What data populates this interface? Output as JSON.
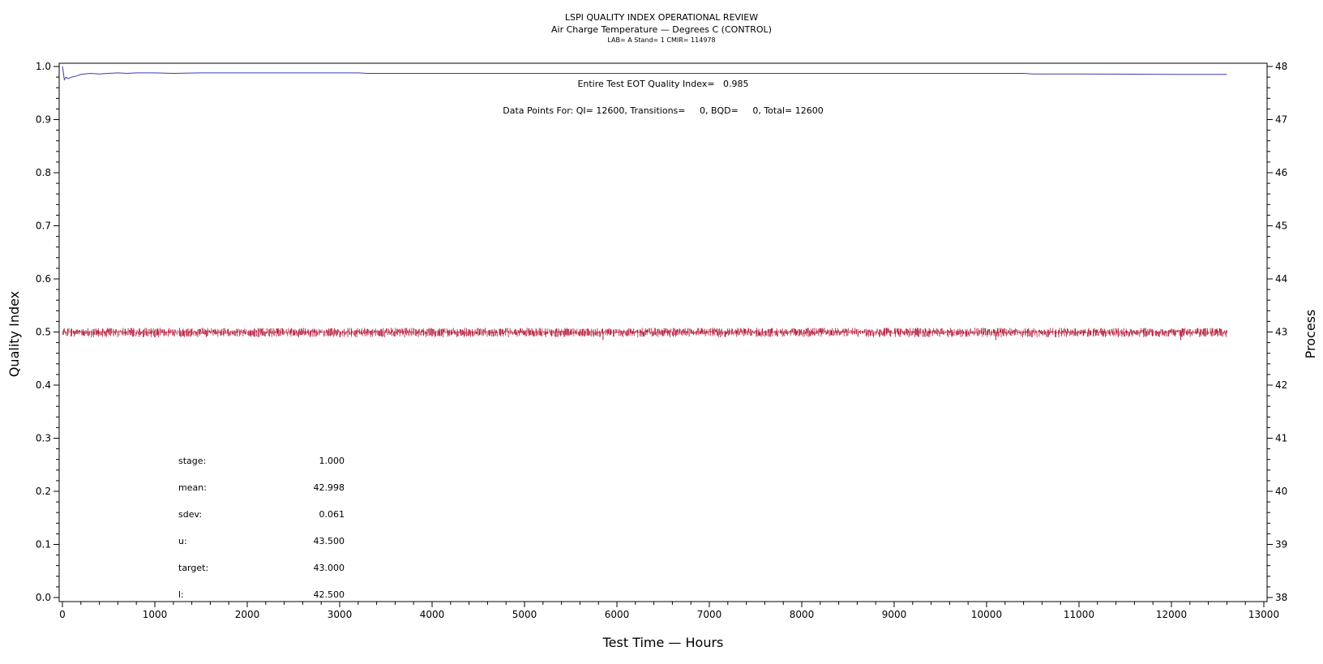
{
  "chart_data": {
    "type": "line",
    "title": "LSPI QUALITY INDEX OPERATIONAL REVIEW",
    "subtitle": "Air Charge Temperature — Degrees C (CONTROL)",
    "subtitle2": "LAB= A Stand= 1 CMIR= 114978",
    "xlabel": "Test Time — Hours",
    "ylabel_left": "Quality Index",
    "ylabel_right": "Process",
    "xlim": [
      0,
      13000
    ],
    "ylim_left": [
      0.0,
      1.0
    ],
    "ylim_right": [
      38,
      48
    ],
    "x_ticks": [
      "0",
      "1000",
      "2000",
      "3000",
      "4000",
      "5000",
      "6000",
      "7000",
      "8000",
      "9000",
      "10000",
      "11000",
      "12000",
      "13000"
    ],
    "y_left_ticks": [
      "0.0",
      "0.1",
      "0.2",
      "0.3",
      "0.4",
      "0.5",
      "0.6",
      "0.7",
      "0.8",
      "0.9",
      "1.0"
    ],
    "y_right_ticks": [
      "38",
      "39",
      "40",
      "41",
      "42",
      "43",
      "44",
      "45",
      "46",
      "47",
      "48"
    ],
    "grid": false,
    "annotations": {
      "eot_qi": "Entire Test EOT Quality Index=   0.985",
      "data_points": "Data Points For: QI= 12600, Transitions=     0, BQD=     0, Total= 12600"
    },
    "stats": [
      {
        "label": "stage:",
        "value": "1.000"
      },
      {
        "label": "mean:",
        "value": "42.998"
      },
      {
        "label": "sdev:",
        "value": "0.061"
      },
      {
        "label": "u:",
        "value": "43.500"
      },
      {
        "label": "target:",
        "value": "43.000"
      },
      {
        "label": "l:",
        "value": "42.500"
      }
    ],
    "series": [
      {
        "axis": "left",
        "color": "#3b3bb0",
        "x": [
          0,
          10,
          20,
          40,
          60,
          100,
          150,
          200,
          300,
          400,
          500,
          600,
          700,
          800,
          1000,
          1200,
          1500,
          2000,
          3000,
          3200,
          3300,
          4000,
          6000,
          8000,
          10000,
          10400,
          10500,
          11000,
          12000,
          12600
        ],
        "values": [
          1.0,
          0.99,
          0.975,
          0.98,
          0.977,
          0.98,
          0.982,
          0.985,
          0.987,
          0.986,
          0.987,
          0.988,
          0.987,
          0.988,
          0.988,
          0.987,
          0.988,
          0.988,
          0.988,
          0.988,
          0.987,
          0.987,
          0.987,
          0.987,
          0.987,
          0.987,
          0.986,
          0.986,
          0.985,
          0.985
        ]
      },
      {
        "axis": "right",
        "color": "#b01030",
        "x_start": 0,
        "x_end": 12600,
        "mean": 42.998,
        "low": 42.9,
        "high": 43.08
      }
    ]
  }
}
